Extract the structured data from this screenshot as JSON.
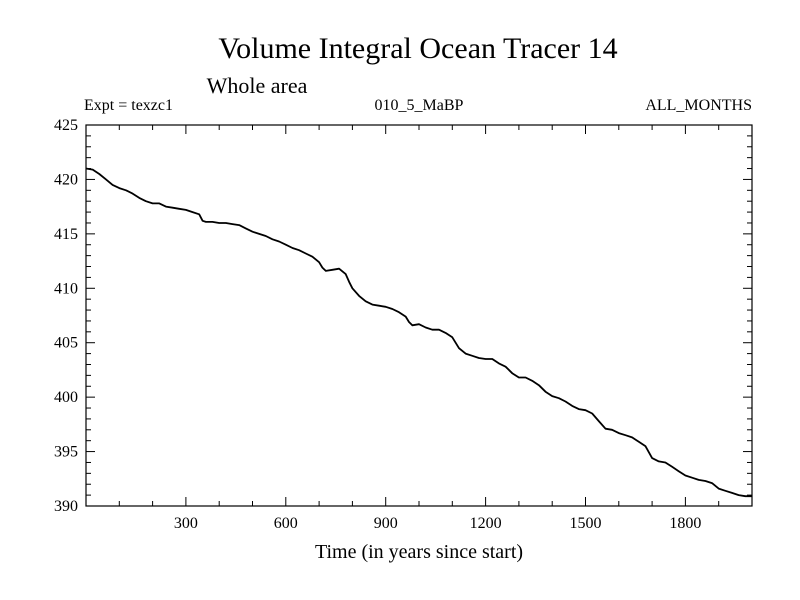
{
  "chart_data": {
    "type": "line",
    "title": "Volume Integral Ocean Tracer 14",
    "subtitle": "Whole area",
    "expt_label": "Expt = texzc1",
    "run_label": "010_5_MaBP",
    "period_label": "ALL_MONTHS",
    "xlabel": "Time (in years since start)",
    "ylabel": "",
    "xlim": [
      0,
      2000
    ],
    "ylim": [
      390,
      425
    ],
    "xticks": [
      300,
      600,
      900,
      1200,
      1500,
      1800
    ],
    "yticks": [
      390,
      395,
      400,
      405,
      410,
      415,
      420,
      425
    ],
    "grid": false,
    "series": [
      {
        "name": "Volume Integral Ocean Tracer 14",
        "x": [
          0,
          20,
          40,
          60,
          80,
          100,
          120,
          140,
          160,
          180,
          200,
          220,
          240,
          260,
          280,
          300,
          320,
          340,
          350,
          360,
          380,
          400,
          420,
          440,
          460,
          480,
          500,
          520,
          540,
          560,
          580,
          600,
          620,
          640,
          660,
          680,
          700,
          710,
          720,
          740,
          760,
          780,
          790,
          800,
          820,
          840,
          860,
          880,
          900,
          920,
          940,
          960,
          970,
          980,
          1000,
          1020,
          1040,
          1060,
          1080,
          1100,
          1120,
          1140,
          1160,
          1180,
          1200,
          1220,
          1240,
          1260,
          1280,
          1300,
          1320,
          1340,
          1360,
          1380,
          1400,
          1420,
          1440,
          1460,
          1480,
          1500,
          1520,
          1540,
          1560,
          1580,
          1600,
          1620,
          1640,
          1660,
          1680,
          1700,
          1720,
          1740,
          1760,
          1780,
          1800,
          1820,
          1840,
          1860,
          1880,
          1900,
          1920,
          1940,
          1960,
          1980,
          2000
        ],
        "y": [
          421.0,
          420.9,
          420.5,
          420.0,
          419.5,
          419.2,
          419.0,
          418.7,
          418.3,
          418.0,
          417.8,
          417.8,
          417.5,
          417.4,
          417.3,
          417.2,
          417.0,
          416.8,
          416.2,
          416.1,
          416.1,
          416.0,
          416.0,
          415.9,
          415.8,
          415.5,
          415.2,
          415.0,
          414.8,
          414.5,
          414.3,
          414.0,
          413.7,
          413.5,
          413.2,
          412.9,
          412.4,
          411.9,
          411.6,
          411.7,
          411.8,
          411.3,
          410.6,
          410.0,
          409.3,
          408.8,
          408.5,
          408.4,
          408.3,
          408.1,
          407.8,
          407.4,
          406.9,
          406.6,
          406.7,
          406.4,
          406.2,
          406.2,
          405.9,
          405.5,
          404.5,
          404.0,
          403.8,
          403.6,
          403.5,
          403.5,
          403.1,
          402.8,
          402.2,
          401.8,
          401.8,
          401.5,
          401.1,
          400.5,
          400.1,
          399.9,
          399.6,
          399.2,
          398.9,
          398.8,
          398.5,
          397.8,
          397.1,
          397.0,
          396.7,
          396.5,
          396.3,
          395.9,
          395.5,
          394.4,
          394.1,
          394.0,
          393.6,
          393.2,
          392.8,
          392.6,
          392.4,
          392.3,
          392.1,
          391.6,
          391.4,
          391.2,
          391.0,
          390.9,
          390.9
        ]
      }
    ]
  }
}
